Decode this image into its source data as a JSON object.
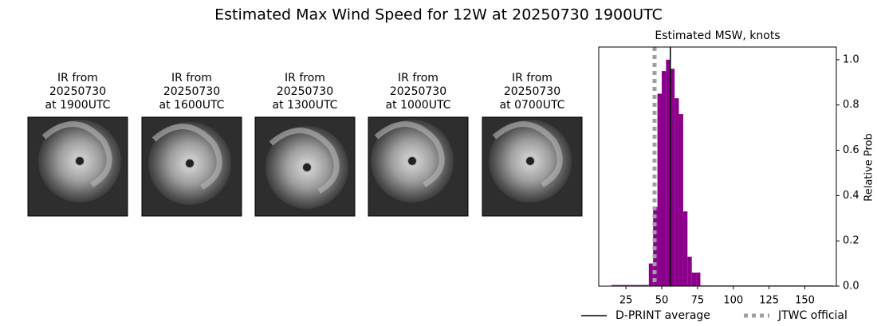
{
  "title": "Estimated Max Wind Speed for 12W at 20250730 1900UTC",
  "panels": [
    {
      "lines": [
        "IR from",
        "20250730",
        "at 1900UTC"
      ]
    },
    {
      "lines": [
        "IR from",
        "20250730",
        "at 1600UTC"
      ]
    },
    {
      "lines": [
        "IR from",
        "20250730",
        "at 1300UTC"
      ]
    },
    {
      "lines": [
        "IR from",
        "20250730",
        "at 1000UTC"
      ]
    },
    {
      "lines": [
        "IR from",
        "20250730",
        "at 0700UTC"
      ]
    }
  ],
  "chart_data": {
    "type": "histogram",
    "title": "Estimated MSW, knots",
    "y2label": "Relative Prob",
    "color": "#8b008b",
    "bins": [
      15,
      41,
      44,
      47,
      50,
      53,
      56,
      59,
      62,
      65,
      68,
      71,
      74,
      77,
      170
    ],
    "values": [
      0.005,
      0.1,
      0.35,
      0.85,
      0.95,
      1.0,
      0.96,
      0.83,
      0.76,
      0.33,
      0.13,
      0.06,
      0.06,
      0.003
    ],
    "xlim": [
      6,
      172
    ],
    "xticks": [
      25,
      50,
      75,
      100,
      125,
      150
    ],
    "y2lim": [
      0,
      1.056
    ],
    "y2ticks": [
      {
        "value": 0,
        "label": "0.0"
      },
      {
        "value": 0.2,
        "label": "0.2"
      },
      {
        "value": 0.4,
        "label": "0.4"
      },
      {
        "value": 0.6,
        "label": "0.6"
      },
      {
        "value": 0.8,
        "label": "0.8"
      },
      {
        "value": 1,
        "label": "1.0"
      }
    ],
    "lines": [
      {
        "name": "D-PRINT average",
        "value": 56,
        "color": "#000000",
        "style": "solid"
      },
      {
        "name": "JTWC official",
        "value": 45,
        "color": "#a0a0a0",
        "style": "dotted"
      }
    ]
  }
}
